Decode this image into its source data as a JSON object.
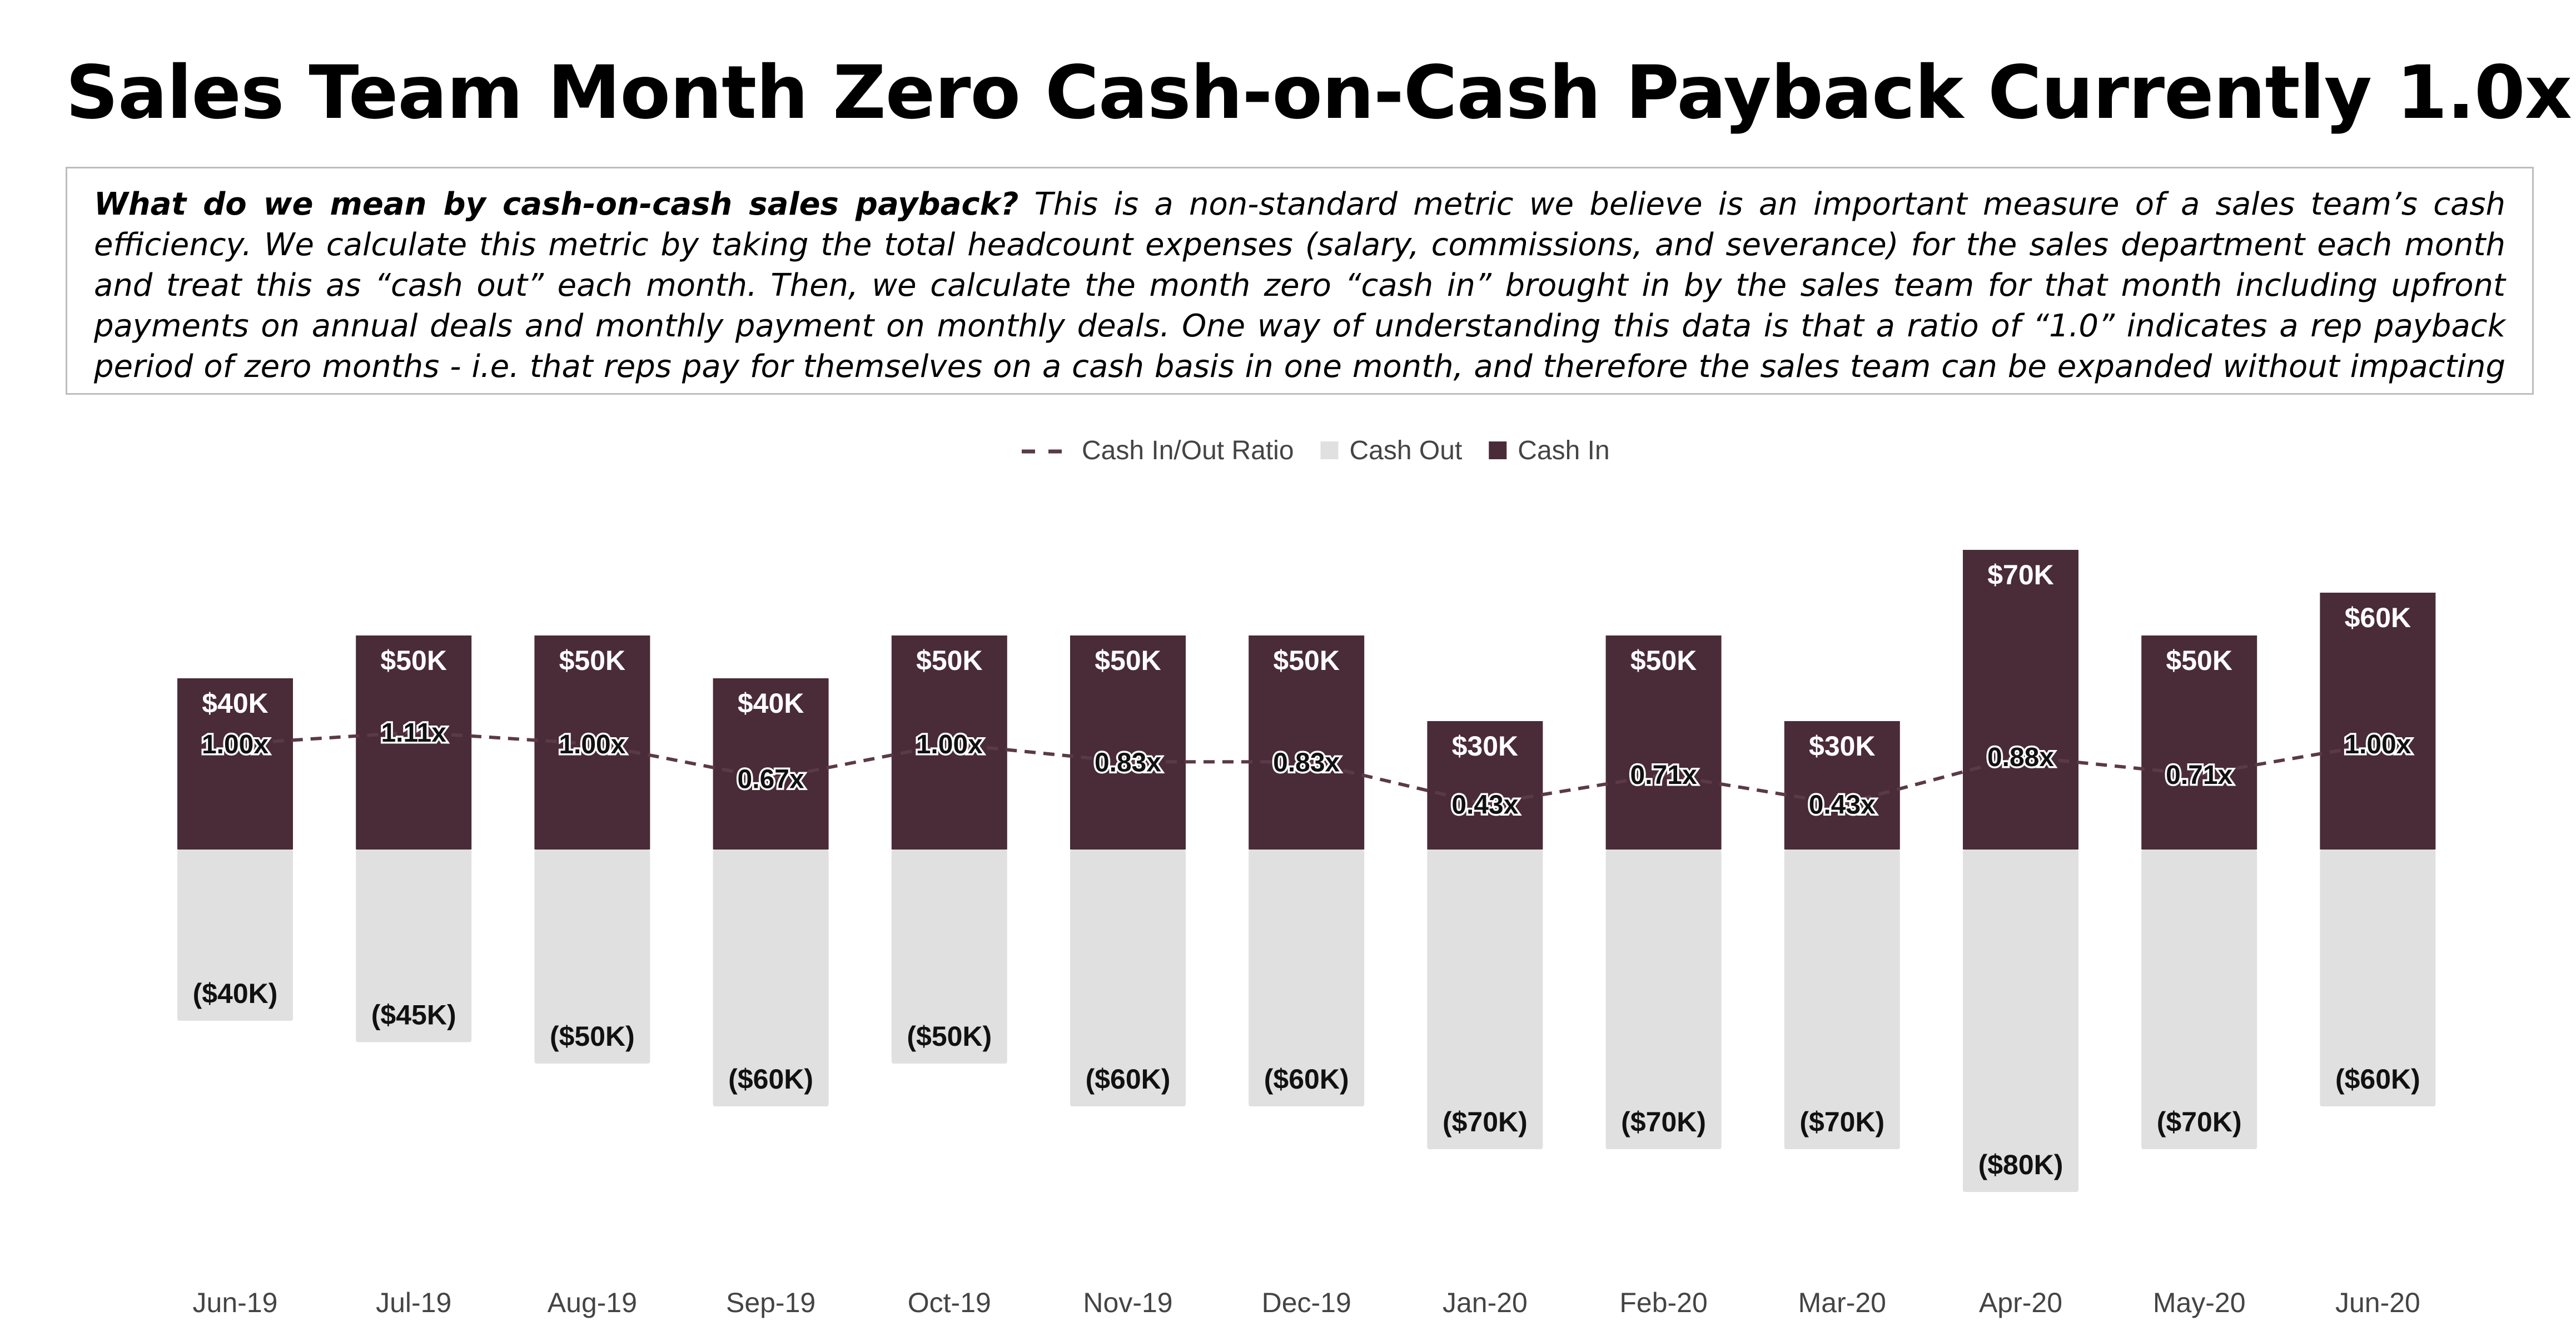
{
  "title": "Sales Team Month Zero Cash-on-Cash Payback Currently 1.0x",
  "description": {
    "question": "What do we mean by cash-on-cash sales payback?",
    "body": " This is a non-standard metric we believe is an important measure of a sales team’s cash efficiency. We calculate this metric by taking the total headcount expenses (salary, commissions, and severance) for the sales department each month and treat this as “cash out” each month. Then, we calculate the month zero “cash in” brought in by the sales team for that month including upfront payments on annual deals and monthly payment on monthly deals. One way of understanding this data is that a ratio of “1.0” indicates a rep payback period of zero months - i.e. that reps pay for themselves on a cash basis in one month, and therefore the sales team can be expanded without impacting burn."
  },
  "colors": {
    "cash_in": "#4a2b38",
    "cash_out": "#e0e0e0",
    "ratio_line": "#5a3a46"
  },
  "chart_data": {
    "type": "bar",
    "stacking": "diverging",
    "title": "",
    "xlabel": "",
    "ylabel": "",
    "ylim": [
      -80,
      70
    ],
    "grid": false,
    "legend_position": "top-center",
    "legend": [
      "Cash In/Out Ratio",
      "Cash Out",
      "Cash In"
    ],
    "categories": [
      "Jun-19",
      "Jul-19",
      "Aug-19",
      "Sep-19",
      "Oct-19",
      "Nov-19",
      "Dec-19",
      "Jan-20",
      "Feb-20",
      "Mar-20",
      "Apr-20",
      "May-20",
      "Jun-20"
    ],
    "series": [
      {
        "name": "Cash In",
        "values": [
          40,
          50,
          50,
          40,
          50,
          50,
          50,
          30,
          50,
          30,
          70,
          50,
          60
        ],
        "labels": [
          "$40K",
          "$50K",
          "$50K",
          "$40K",
          "$50K",
          "$50K",
          "$50K",
          "$30K",
          "$50K",
          "$30K",
          "$70K",
          "$50K",
          "$60K"
        ]
      },
      {
        "name": "Cash Out",
        "values": [
          -40,
          -45,
          -50,
          -60,
          -50,
          -60,
          -60,
          -70,
          -70,
          -70,
          -80,
          -70,
          -60
        ],
        "labels": [
          "($40K)",
          "($45K)",
          "($50K)",
          "($60K)",
          "($50K)",
          "($60K)",
          "($60K)",
          "($70K)",
          "($70K)",
          "($70K)",
          "($80K)",
          "($70K)",
          "($60K)"
        ]
      },
      {
        "name": "Cash In/Out Ratio",
        "style": "dashed-line",
        "values": [
          1.0,
          1.11,
          1.0,
          0.67,
          1.0,
          0.83,
          0.83,
          0.43,
          0.71,
          0.43,
          0.88,
          0.71,
          1.0
        ],
        "labels": [
          "1.00x",
          "1.11x",
          "1.00x",
          "0.67x",
          "1.00x",
          "0.83x",
          "0.83x",
          "0.43x",
          "0.71x",
          "0.43x",
          "0.88x",
          "0.71x",
          "1.00x"
        ]
      }
    ]
  }
}
